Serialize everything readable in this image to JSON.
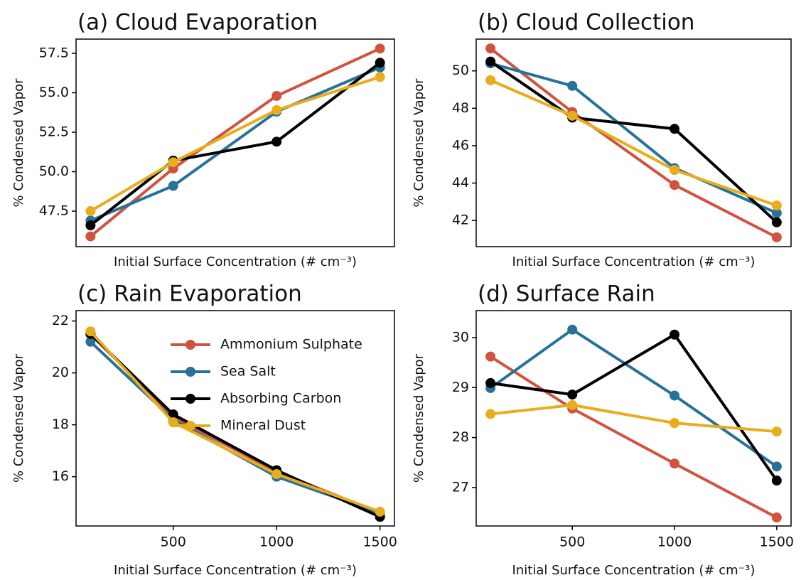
{
  "chart_data": [
    {
      "type": "line",
      "title": "(a) Cloud Evaporation",
      "x_label": "Initial Surface Concentration (# cm⁻³)",
      "y_label": "% Condensed Vapor",
      "x": [
        100,
        500,
        1000,
        1500
      ],
      "xlim": [
        30,
        1570
      ],
      "ylim": [
        45.25,
        58.4
      ],
      "yticks": [
        47.5,
        {
          "value": 50,
          "label": "50.0"
        },
        52.5,
        {
          "value": 55,
          "label": "55.0"
        },
        57.5
      ],
      "series": [
        {
          "color": "#d1533f",
          "values": [
            45.9,
            50.2,
            54.8,
            57.8
          ]
        },
        {
          "color": "#26729a",
          "values": [
            46.9,
            49.1,
            53.8,
            56.6
          ]
        },
        {
          "color": "#000000",
          "values": [
            46.6,
            50.7,
            51.9,
            56.9
          ]
        },
        {
          "color": "#e8ad1b",
          "values": [
            47.5,
            50.6,
            53.9,
            56.0
          ]
        }
      ]
    },
    {
      "type": "line",
      "title": "(b) Cloud Collection",
      "x_label": "Initial Surface Concentration (# cm⁻³)",
      "y_label": "% Condensed Vapor",
      "x": [
        100,
        500,
        1000,
        1500
      ],
      "xlim": [
        30,
        1570
      ],
      "ylim": [
        40.6,
        51.7
      ],
      "yticks": [
        42,
        44,
        46,
        48,
        50
      ],
      "series": [
        {
          "color": "#d1533f",
          "values": [
            51.2,
            47.8,
            43.9,
            41.1
          ]
        },
        {
          "color": "#26729a",
          "values": [
            50.4,
            49.2,
            44.8,
            42.4
          ]
        },
        {
          "color": "#000000",
          "values": [
            50.5,
            47.5,
            46.9,
            41.9
          ]
        },
        {
          "color": "#e8ad1b",
          "values": [
            49.5,
            47.6,
            44.7,
            42.8
          ]
        }
      ]
    },
    {
      "type": "line",
      "title": "(c) Rain Evaporation",
      "x_label": "Initial Surface Concentration (# cm⁻³)",
      "y_label": "% Condensed Vapor",
      "x": [
        100,
        500,
        1000,
        1500
      ],
      "xlim": [
        30,
        1570
      ],
      "ylim": [
        14.1,
        22.4
      ],
      "xticks": [
        500,
        1000,
        1500
      ],
      "yticks": [
        16,
        18,
        20,
        22
      ],
      "legend": "upper right",
      "series": [
        {
          "name": "Ammonium Sulphate",
          "color": "#d1533f",
          "values": [
            21.5,
            18.3,
            16.2,
            14.6
          ]
        },
        {
          "name": "Sea Salt",
          "color": "#26729a",
          "values": [
            21.2,
            18.2,
            16.0,
            14.6
          ]
        },
        {
          "name": "Absorbing Carbon",
          "color": "#000000",
          "values": [
            21.5,
            18.4,
            16.25,
            14.45
          ]
        },
        {
          "name": "Mineral Dust",
          "color": "#e8ad1b",
          "values": [
            21.6,
            18.1,
            16.1,
            14.65
          ]
        }
      ]
    },
    {
      "type": "line",
      "title": "(d) Surface Rain",
      "x_label": "Initial Surface Concentration (# cm⁻³)",
      "y_label": "% Condensed Vapor",
      "x": [
        100,
        500,
        1000,
        1500
      ],
      "xlim": [
        30,
        1570
      ],
      "ylim": [
        26.23,
        30.54
      ],
      "xticks": [
        500,
        1000,
        1500
      ],
      "yticks": [
        27,
        28,
        29,
        30
      ],
      "series": [
        {
          "color": "#d1533f",
          "values": [
            29.62,
            28.58,
            27.48,
            26.4
          ]
        },
        {
          "color": "#26729a",
          "values": [
            28.99,
            30.16,
            28.84,
            27.42
          ]
        },
        {
          "color": "#000000",
          "values": [
            29.09,
            28.86,
            30.06,
            27.14
          ]
        },
        {
          "color": "#e8ad1b",
          "values": [
            28.47,
            28.65,
            28.29,
            28.12
          ]
        }
      ]
    }
  ]
}
